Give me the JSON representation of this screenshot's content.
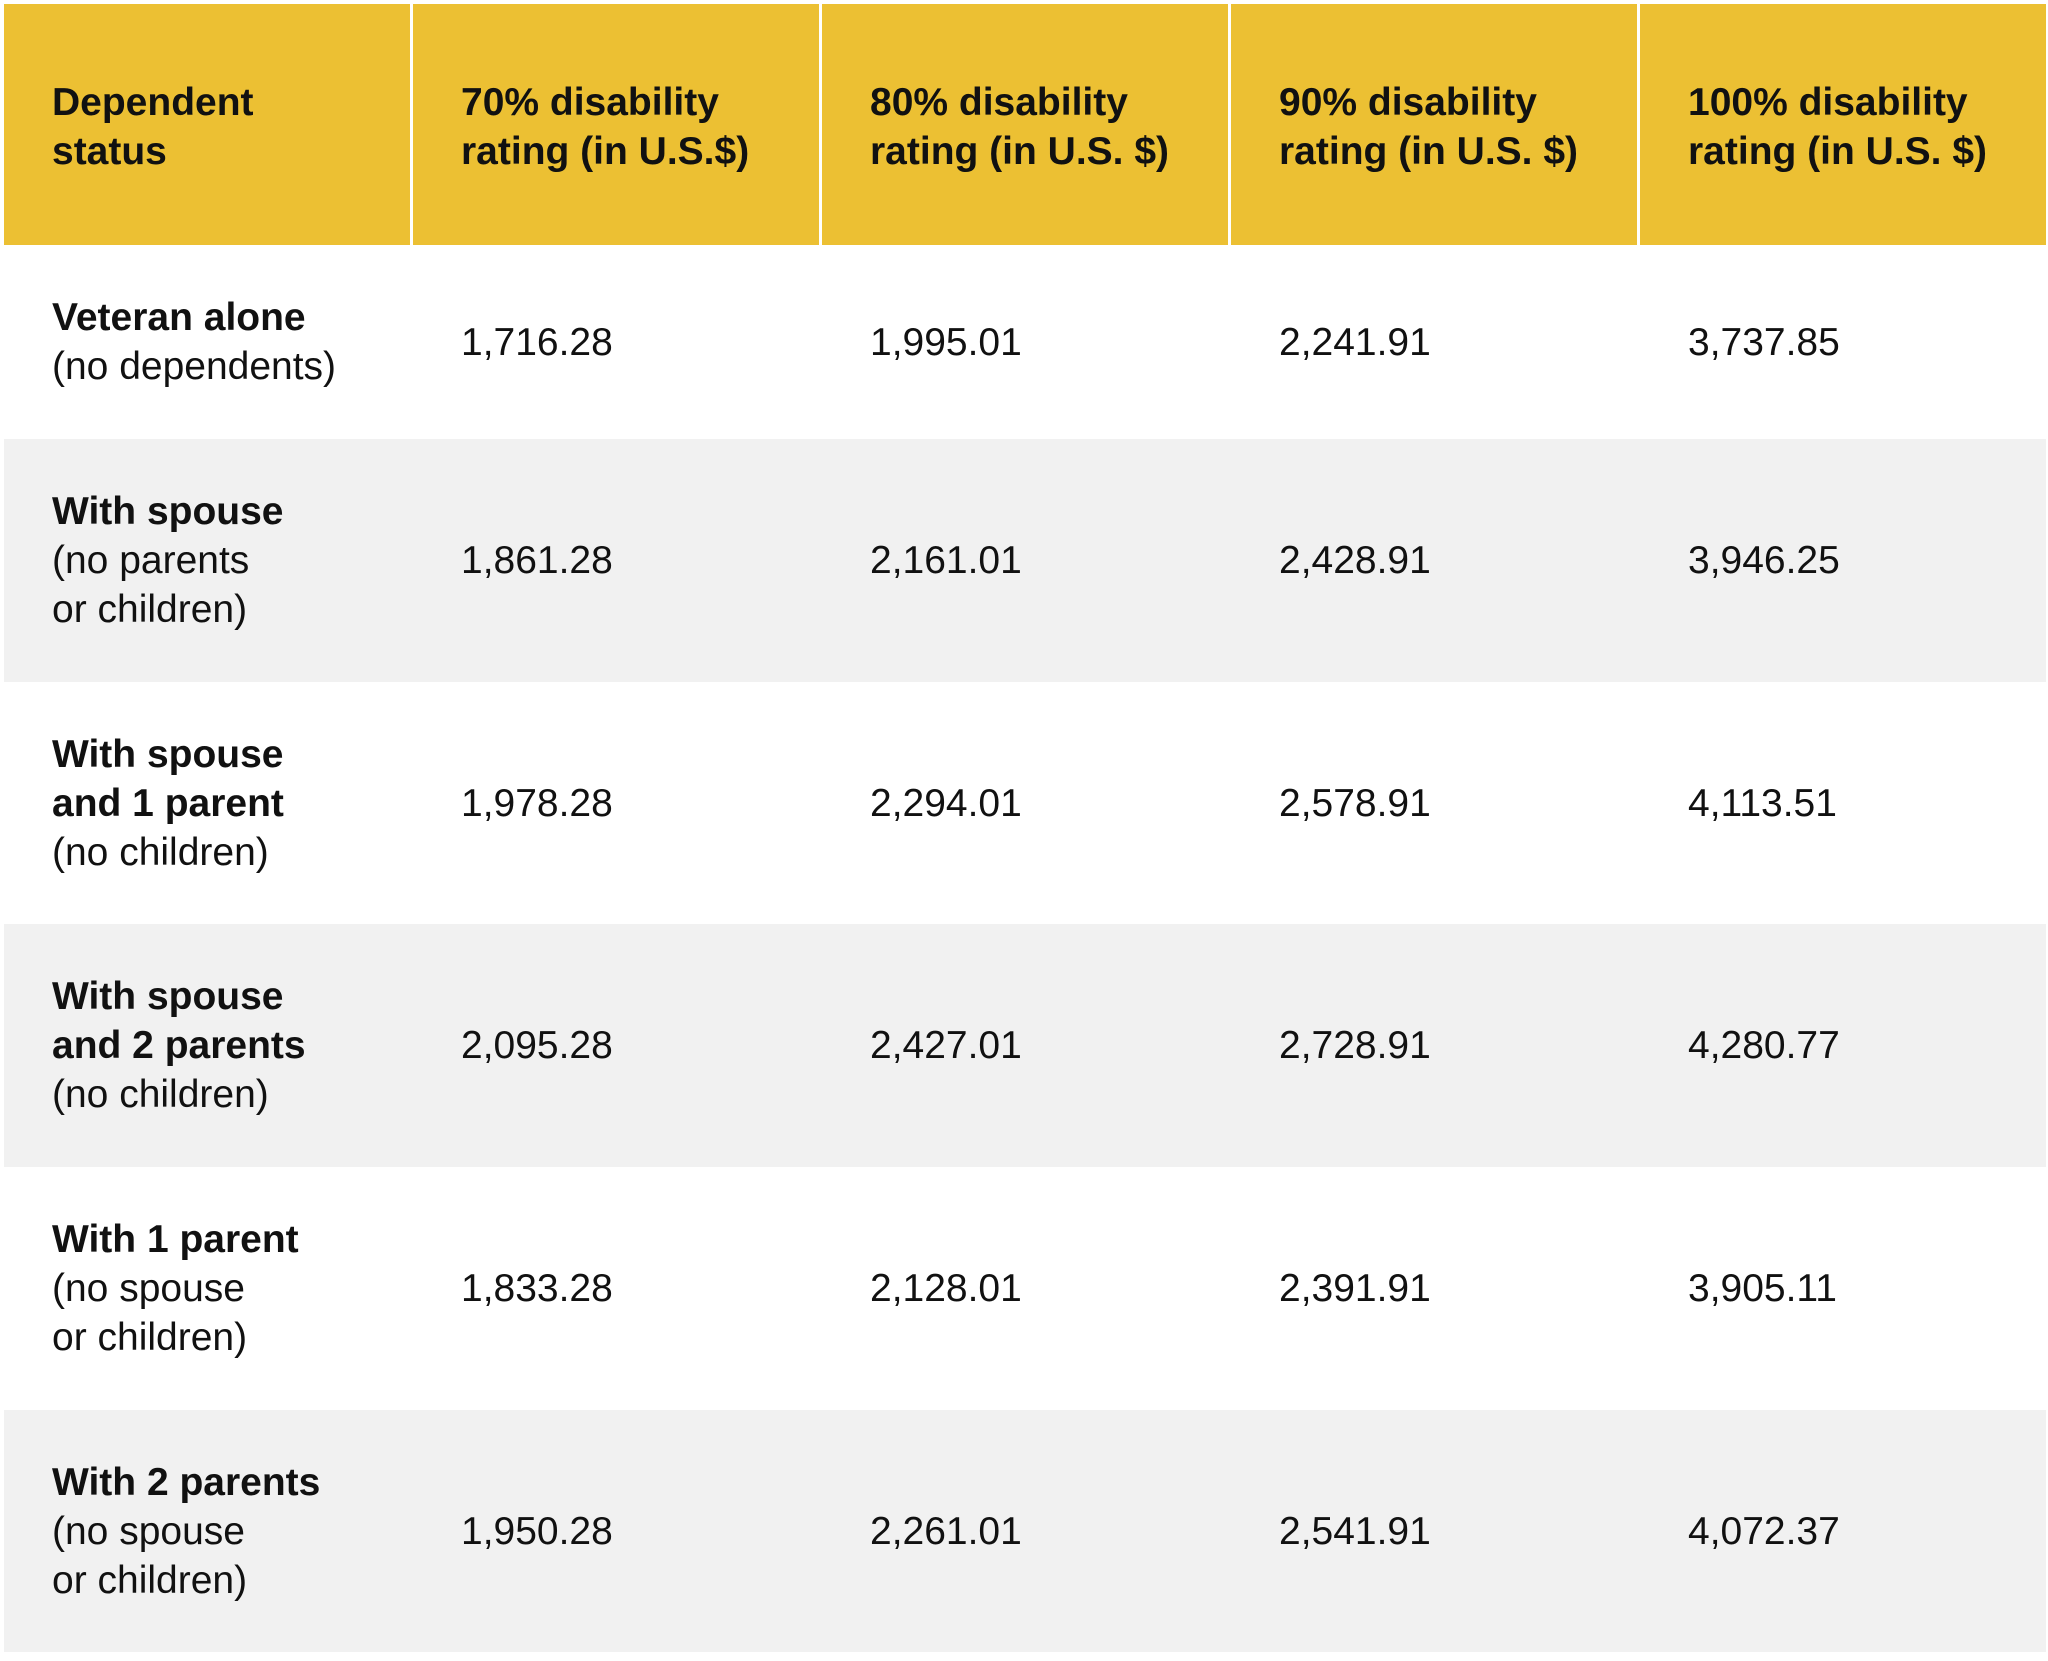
{
  "table": {
    "headers": [
      "Dependent\nstatus",
      "70% disability\nrating (in U.S.$)",
      "80% disability\nrating (in U.S. $)",
      "90% disability\nrating (in U.S. $)",
      "100% disability\nrating (in U.S. $)"
    ],
    "rows": [
      {
        "status_bold": "Veteran alone",
        "status_sub": "(no dependents)",
        "values": [
          "1,716.28",
          "1,995.01",
          "2,241.91",
          "3,737.85"
        ]
      },
      {
        "status_bold": "With spouse",
        "status_sub": "(no parents\nor children)",
        "values": [
          "1,861.28",
          "2,161.01",
          "2,428.91",
          "3,946.25"
        ]
      },
      {
        "status_bold": "With spouse\nand 1 parent",
        "status_sub": "(no children)",
        "values": [
          "1,978.28",
          "2,294.01",
          "2,578.91",
          "4,113.51"
        ]
      },
      {
        "status_bold": "With spouse\nand 2 parents",
        "status_sub": "(no children)",
        "values": [
          "2,095.28",
          "2,427.01",
          "2,728.91",
          "4,280.77"
        ]
      },
      {
        "status_bold": "With 1 parent",
        "status_sub": "(no spouse\nor children)",
        "values": [
          "1,833.28",
          "2,128.01",
          "2,391.91",
          "3,905.11"
        ]
      },
      {
        "status_bold": "With 2 parents",
        "status_sub": "(no spouse\nor children)",
        "values": [
          "1,950.28",
          "2,261.01",
          "2,541.91",
          "4,072.37"
        ]
      }
    ],
    "colors": {
      "header_bg": "#ECC033",
      "shaded_row_bg": "#F1F1F1",
      "text": "#111111"
    }
  }
}
